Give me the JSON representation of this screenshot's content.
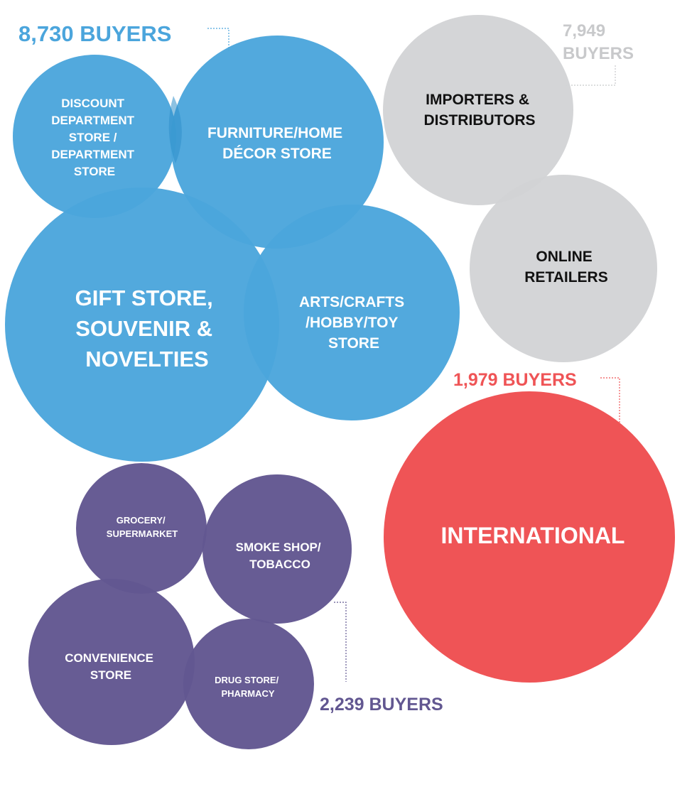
{
  "colors": {
    "blue": "#4ba5dc",
    "gray": "#d2d3d5",
    "red": "#ef5456",
    "purple": "#625791",
    "white_text": "#ffffff",
    "dark_text": "#111111",
    "gray_count": "#c8c9cb"
  },
  "groups": {
    "blue": {
      "count_label": "8,730 BUYERS",
      "circles": {
        "discount": [
          "DISCOUNT",
          "DEPARTMENT",
          "STORE /",
          "DEPARTMENT",
          "STORE"
        ],
        "furniture": [
          "FURNITURE/HOME",
          "DÉCOR STORE"
        ],
        "gift": [
          "GIFT STORE,",
          "SOUVENIR &",
          "NOVELTIES"
        ],
        "arts": [
          "ARTS/CRAFTS",
          "/HOBBY/TOY",
          "STORE"
        ]
      }
    },
    "gray": {
      "count_label": [
        "7,949",
        "BUYERS"
      ],
      "circles": {
        "importers": [
          "IMPORTERS &",
          "DISTRIBUTORS"
        ],
        "online": [
          "ONLINE",
          "RETAILERS"
        ]
      }
    },
    "red": {
      "count_label": "1,979 BUYERS",
      "circles": {
        "international": [
          "INTERNATIONAL"
        ]
      }
    },
    "purple": {
      "count_label": "2,239 BUYERS",
      "circles": {
        "grocery": [
          "GROCERY/",
          "SUPERMARKET"
        ],
        "smoke": [
          "SMOKE SHOP/",
          "TOBACCO"
        ],
        "convenience": [
          "CONVENIENCE",
          "STORE"
        ],
        "drug": [
          "DRUG STORE/",
          "PHARMACY"
        ]
      }
    }
  }
}
